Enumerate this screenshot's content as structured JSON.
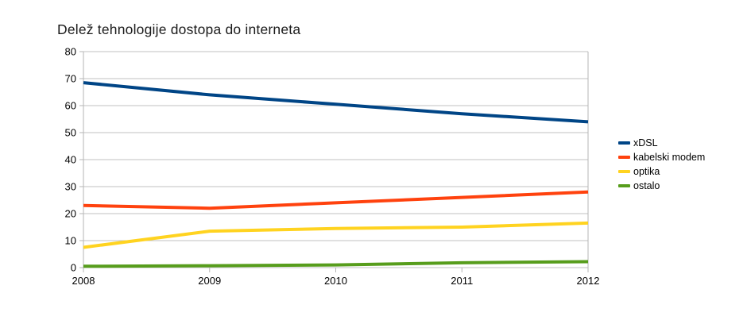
{
  "chart_data": {
    "type": "line",
    "title": "Delež tehnologije dostopa do interneta",
    "categories": [
      "2008",
      "2009",
      "2010",
      "2011",
      "2012"
    ],
    "series": [
      {
        "name": "xDSL",
        "color": "#004586",
        "values": [
          68.5,
          64.0,
          60.5,
          57.0,
          54.0
        ]
      },
      {
        "name": "kabelski modem",
        "color": "#FF420E",
        "values": [
          23.0,
          22.0,
          24.0,
          26.0,
          28.0
        ]
      },
      {
        "name": "optika",
        "color": "#FFD320",
        "values": [
          7.5,
          13.5,
          14.5,
          15.0,
          16.5
        ]
      },
      {
        "name": "ostalo",
        "color": "#579D1C",
        "values": [
          0.5,
          0.7,
          1.0,
          1.8,
          2.2
        ]
      }
    ],
    "ylim": [
      0,
      80
    ],
    "yticks": [
      0,
      10,
      20,
      30,
      40,
      50,
      60,
      70,
      80
    ],
    "grid": true,
    "legend_position": "right",
    "xlabel": "",
    "ylabel": "",
    "grid_color": "#c2c2c2",
    "axis_color": "#b5b5b5",
    "text_color": "#000000",
    "line_width": 4
  }
}
